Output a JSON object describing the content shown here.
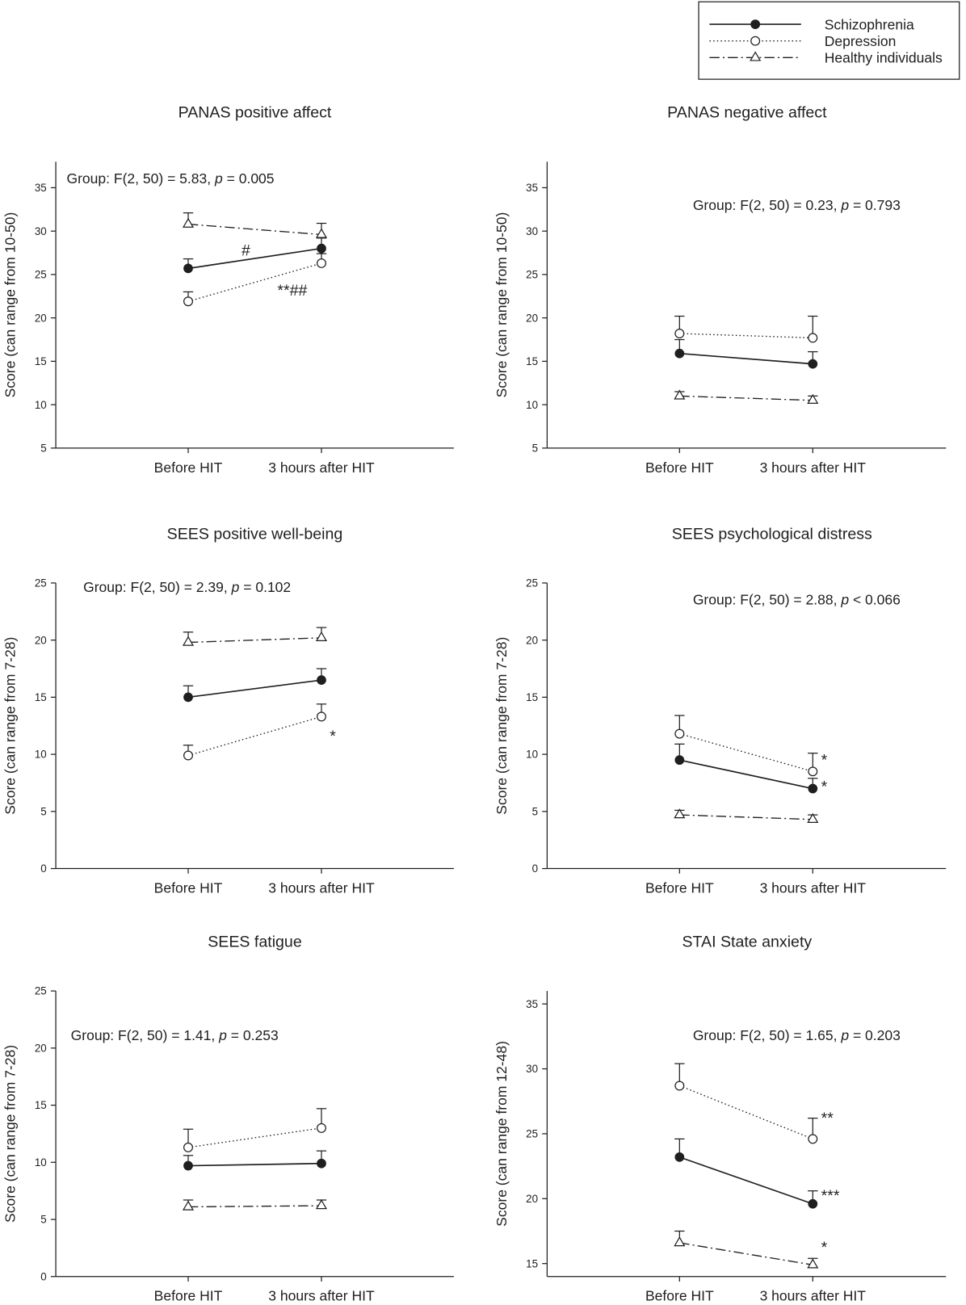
{
  "colors": {
    "ink": "#1f1f1f",
    "background": "#ffffff"
  },
  "legend": {
    "entries": [
      "Schizophrenia",
      "Depression",
      "Healthy individuals"
    ]
  },
  "chart_data": [
    {
      "type": "line",
      "title": "PANAS positive affect",
      "xlabel": "",
      "ylabel": "Score (can range from 10-50)",
      "categories": [
        "Before HIT",
        "3 hours after HIT"
      ],
      "ylim": [
        5,
        38
      ],
      "yticks": [
        5,
        10,
        15,
        20,
        25,
        30,
        35
      ],
      "series": [
        {
          "name": "Schizophrenia",
          "values": [
            25.7,
            28.0
          ],
          "error_upper": [
            26.8,
            29.2
          ]
        },
        {
          "name": "Depression",
          "values": [
            21.9,
            26.3
          ],
          "error_upper": [
            23.0,
            27.4
          ]
        },
        {
          "name": "Healthy individuals",
          "values": [
            30.8,
            29.6
          ],
          "error_upper": [
            32.1,
            30.9
          ]
        }
      ],
      "stat": {
        "prefix": "Group: F(2, 50) = 5.83, ",
        "italic": "p",
        "suffix": " = 0.005"
      },
      "annotations": [
        {
          "text": "#"
        },
        {
          "text": "**##"
        }
      ]
    },
    {
      "type": "line",
      "title": "PANAS negative affect",
      "xlabel": "",
      "ylabel": "Score (can range from 10-50)",
      "categories": [
        "Before HIT",
        "3 hours after HIT"
      ],
      "ylim": [
        5,
        38
      ],
      "yticks": [
        5,
        10,
        15,
        20,
        25,
        30,
        35
      ],
      "series": [
        {
          "name": "Schizophrenia",
          "values": [
            15.9,
            14.7
          ],
          "error_upper": [
            17.5,
            16.1
          ]
        },
        {
          "name": "Depression",
          "values": [
            18.2,
            17.7
          ],
          "error_upper": [
            20.2,
            20.2
          ]
        },
        {
          "name": "Healthy individuals",
          "values": [
            11.0,
            10.5
          ],
          "error_upper": [
            11.5,
            11.0
          ]
        }
      ],
      "stat": {
        "prefix": "Group: F(2, 50) = 0.23, ",
        "italic": "p",
        "suffix": " = 0.793"
      },
      "annotations": []
    },
    {
      "type": "line",
      "title": "SEES positive well-being",
      "xlabel": "",
      "ylabel": "Score (can range from 7-28)",
      "categories": [
        "Before HIT",
        "3 hours after HIT"
      ],
      "ylim": [
        0,
        25
      ],
      "yticks": [
        0,
        5,
        10,
        15,
        20,
        25
      ],
      "series": [
        {
          "name": "Schizophrenia",
          "values": [
            15.0,
            16.5
          ],
          "error_upper": [
            16.0,
            17.5
          ]
        },
        {
          "name": "Depression",
          "values": [
            9.9,
            13.3
          ],
          "error_upper": [
            10.8,
            14.4
          ]
        },
        {
          "name": "Healthy individuals",
          "values": [
            19.8,
            20.2
          ],
          "error_upper": [
            20.7,
            21.1
          ]
        }
      ],
      "stat": {
        "prefix": "Group: F(2, 50) = 2.39, ",
        "italic": "p",
        "suffix": " = 0.102"
      },
      "annotations": [
        {
          "text": "*"
        }
      ]
    },
    {
      "type": "line",
      "title": "SEES psychological distress",
      "xlabel": "",
      "ylabel": "Score (can range from 7-28)",
      "categories": [
        "Before HIT",
        "3 hours after HIT"
      ],
      "ylim": [
        0,
        25
      ],
      "yticks": [
        0,
        5,
        10,
        15,
        20,
        25
      ],
      "series": [
        {
          "name": "Schizophrenia",
          "values": [
            9.5,
            7.0
          ],
          "error_upper": [
            10.9,
            7.9
          ]
        },
        {
          "name": "Depression",
          "values": [
            11.8,
            8.5
          ],
          "error_upper": [
            13.4,
            10.1
          ]
        },
        {
          "name": "Healthy individuals",
          "values": [
            4.7,
            4.3
          ],
          "error_upper": [
            5.1,
            4.7
          ]
        }
      ],
      "stat": {
        "prefix": "Group: F(2, 50) = 2.88, ",
        "italic": "p",
        "suffix": " < 0.066"
      },
      "annotations": [
        {
          "text": "*"
        },
        {
          "text": "*"
        }
      ]
    },
    {
      "type": "line",
      "title": "SEES fatigue",
      "xlabel": "",
      "ylabel": "Score (can range from 7-28)",
      "categories": [
        "Before HIT",
        "3 hours after HIT"
      ],
      "ylim": [
        0,
        25
      ],
      "yticks": [
        0,
        5,
        10,
        15,
        20,
        25
      ],
      "series": [
        {
          "name": "Schizophrenia",
          "values": [
            9.7,
            9.9
          ],
          "error_upper": [
            10.6,
            11.0
          ]
        },
        {
          "name": "Depression",
          "values": [
            11.3,
            13.0
          ],
          "error_upper": [
            12.9,
            14.7
          ]
        },
        {
          "name": "Healthy individuals",
          "values": [
            6.1,
            6.2
          ],
          "error_upper": [
            6.7,
            6.7
          ]
        }
      ],
      "stat": {
        "prefix": "Group: F(2, 50) = 1.41, ",
        "italic": "p",
        "suffix": " = 0.253"
      },
      "annotations": []
    },
    {
      "type": "line",
      "title": "STAI State anxiety",
      "xlabel": "",
      "ylabel": "Score (can range from 12-48)",
      "categories": [
        "Before HIT",
        "3 hours after HIT"
      ],
      "ylim": [
        14,
        36
      ],
      "yticks": [
        15,
        20,
        25,
        30,
        35
      ],
      "series": [
        {
          "name": "Schizophrenia",
          "values": [
            23.2,
            19.6
          ],
          "error_upper": [
            24.6,
            20.6
          ]
        },
        {
          "name": "Depression",
          "values": [
            28.7,
            24.6
          ],
          "error_upper": [
            30.4,
            26.2
          ]
        },
        {
          "name": "Healthy individuals",
          "values": [
            16.6,
            14.9
          ],
          "error_upper": [
            17.5,
            15.4
          ]
        }
      ],
      "stat": {
        "prefix": "Group: F(2, 50) = 1.65, ",
        "italic": "p",
        "suffix": " = 0.203"
      },
      "annotations": [
        {
          "text": "**"
        },
        {
          "text": "***"
        },
        {
          "text": "*"
        }
      ]
    }
  ]
}
